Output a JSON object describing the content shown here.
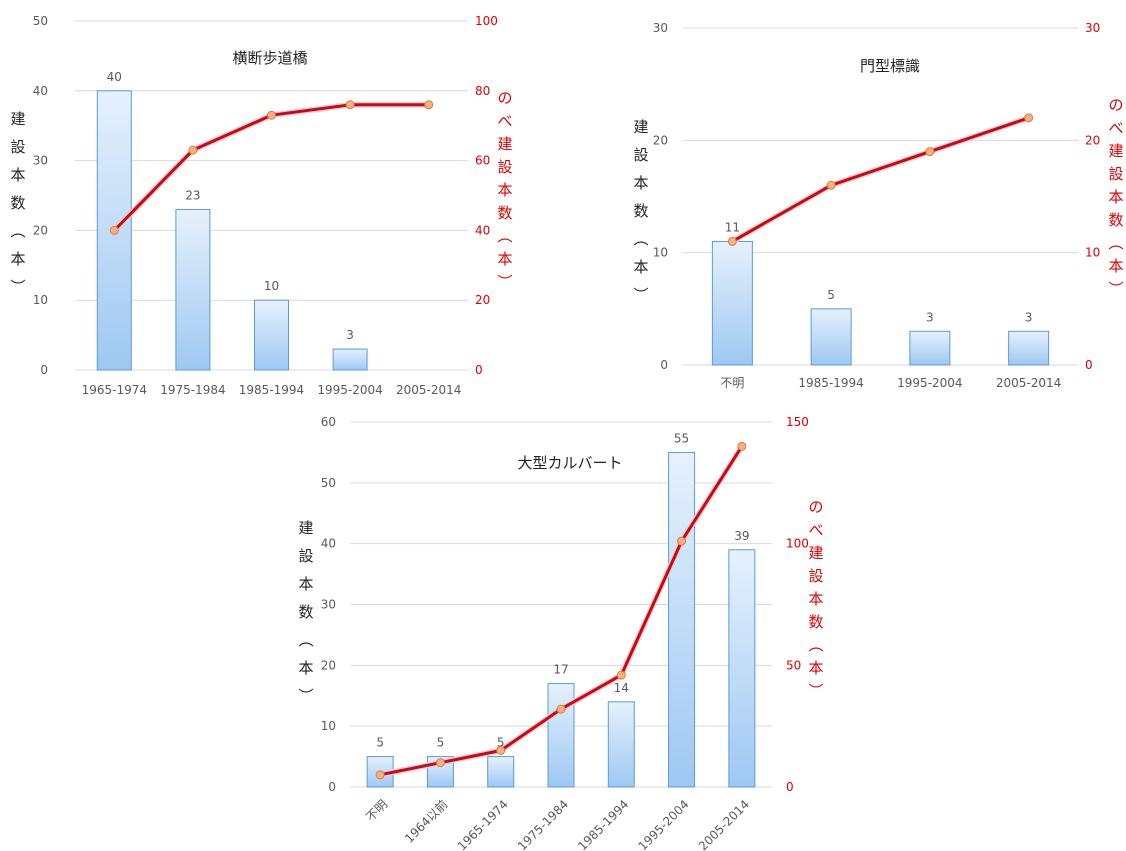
{
  "chart_data": [
    {
      "type": "bar",
      "title": "横断歩道橋",
      "ylabel": "建設本数（本）",
      "y2label": "のべ建設本数（本）",
      "categories": [
        "1965-1974",
        "1975-1984",
        "1985-1994",
        "1995-2004",
        "2005-2014"
      ],
      "bar_values": [
        40,
        23,
        10,
        3,
        null
      ],
      "bar_labels": [
        "40",
        "23",
        "10",
        "3",
        ""
      ],
      "line_values": [
        40,
        63,
        73,
        76,
        76
      ],
      "ylim": [
        0,
        50
      ],
      "y_ticks": [
        0,
        10,
        20,
        30,
        40,
        50
      ],
      "y2lim": [
        0,
        100
      ],
      "y2_ticks": [
        0,
        20,
        40,
        60,
        80,
        100
      ],
      "grid": true,
      "colors": {
        "bar_fill_top": "#e6f1fc",
        "bar_fill_bottom": "#9ec8f2",
        "bar_edge": "#5b9bd5",
        "line": "#e00000",
        "marker": "#f5b183",
        "secondary_axis": "#e00000"
      }
    },
    {
      "type": "bar",
      "title": "門型標識",
      "ylabel": "建設本数（本）",
      "y2label": "のべ建設本数（本）",
      "categories": [
        "不明",
        "1985-1994",
        "1995-2004",
        "2005-2014"
      ],
      "bar_values": [
        11,
        5,
        3,
        3
      ],
      "bar_labels": [
        "11",
        "5",
        "3",
        "3"
      ],
      "line_values": [
        11,
        16,
        19,
        22
      ],
      "ylim": [
        0,
        30
      ],
      "y_ticks": [
        0,
        10,
        20,
        30
      ],
      "y2lim": [
        0,
        30
      ],
      "y2_ticks": [
        0,
        10,
        20,
        30
      ],
      "grid": true,
      "colors": {
        "bar_fill_top": "#e6f1fc",
        "bar_fill_bottom": "#9ec8f2",
        "bar_edge": "#5b9bd5",
        "line": "#e00000",
        "marker": "#f5b183",
        "secondary_axis": "#e00000"
      }
    },
    {
      "type": "bar",
      "title": "大型カルバート",
      "ylabel": "建設本数（本）",
      "y2label": "のべ建設本数（本）",
      "categories": [
        "不明",
        "1964以前",
        "1965-1974",
        "1975-1984",
        "1985-1994",
        "1995-2004",
        "2005-2014"
      ],
      "bar_values": [
        5,
        5,
        5,
        17,
        14,
        55,
        39
      ],
      "bar_labels": [
        "5",
        "5",
        "5",
        "17",
        "14",
        "55",
        "39"
      ],
      "line_values": [
        5,
        10,
        15,
        32,
        46,
        101,
        140
      ],
      "ylim": [
        0,
        60
      ],
      "y_ticks": [
        0,
        10,
        20,
        30,
        40,
        50,
        60
      ],
      "y2lim": [
        0,
        150
      ],
      "y2_ticks": [
        0,
        50,
        100,
        150
      ],
      "x_tick_rotation": "diagonal",
      "grid": true,
      "colors": {
        "bar_fill_top": "#e6f1fc",
        "bar_fill_bottom": "#9ec8f2",
        "bar_edge": "#5b9bd5",
        "line": "#e00000",
        "marker": "#f5b183",
        "secondary_axis": "#e00000"
      }
    }
  ]
}
